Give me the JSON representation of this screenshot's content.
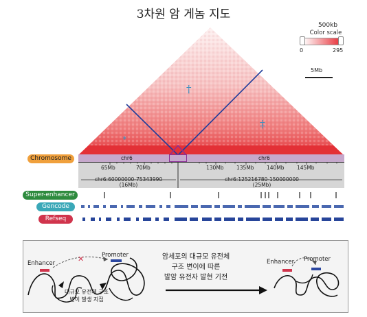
{
  "title": "3차원 암 게놈 지도",
  "color_scale": {
    "resolution": "500kb",
    "label": "Color scale",
    "min": "0",
    "max": "295",
    "low_color": "#ffffff",
    "high_color": "#e8323a"
  },
  "scale_bar": "5Mb",
  "markers": {
    "dagger": "†",
    "double_dagger": "‡",
    "asterisk": "*"
  },
  "tracks": {
    "chromosome": "Chromosome",
    "super_enhancer": "Super-enhancer",
    "gencode": "Gencode",
    "refseq": "Refseq"
  },
  "track_colors": {
    "chromosome": "#f0a03c",
    "super_enhancer": "#2e8b3e",
    "gencode": "#3aa8b8",
    "refseq": "#d0344c"
  },
  "chr_left": "chr6",
  "chr_right": "chr6",
  "ticks_left": [
    "65Mb",
    "70Mb"
  ],
  "ticks_right": [
    "130Mb",
    "135Mb",
    "140Mb",
    "145Mb"
  ],
  "region_left": {
    "coords": "chr6:60000000-75343990",
    "size": "(16Mb)"
  },
  "region_right": {
    "coords": "chr6:125216780-150000000",
    "size": "(25Mb)"
  },
  "diagram": {
    "enhancer_left": "Enhancer",
    "promoter_left": "Promoter",
    "sv_label_line1": "대규모 유전체 구조",
    "sv_label_line2": "변이 발생 지점",
    "center_line1": "암세포의 대규모 유전체",
    "center_line2": "구조 변이에 따른",
    "center_line3": "발암 유전자 발현 기전",
    "enhancer_right": "Enhancer",
    "promoter_right": "Promoter"
  }
}
